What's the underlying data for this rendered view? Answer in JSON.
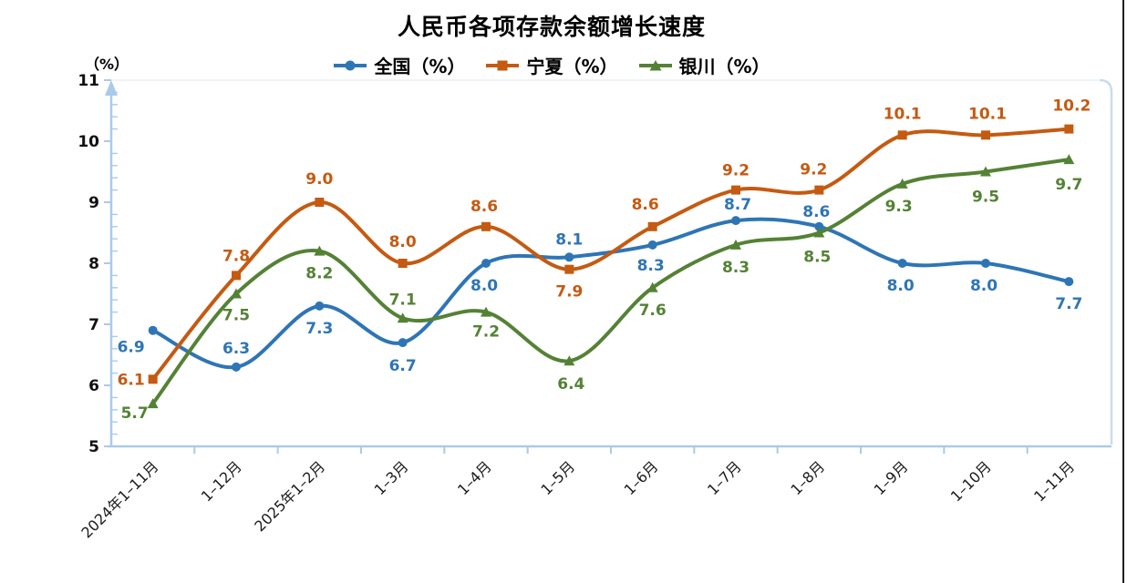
{
  "chart_data": {
    "type": "line",
    "title": "人民币各项存款余额增长速度",
    "unit_label": "（%）",
    "categories": [
      "2024年1–11月",
      "1–12月",
      "2025年1–2月",
      "1–3月",
      "1–4月",
      "1–5月",
      "1–6月",
      "1–7月",
      "1–8月",
      "1–9月",
      "1–10月",
      "1–11月"
    ],
    "series": [
      {
        "name": "全国（%）",
        "marker": "circle",
        "color": "#2E75B6",
        "values": [
          6.9,
          6.3,
          7.3,
          6.7,
          8.0,
          8.1,
          8.3,
          8.7,
          8.6,
          8.0,
          8.0,
          7.7
        ],
        "label_offsets": [
          [
            -24,
            24
          ],
          [
            0,
            -15
          ],
          [
            0,
            30
          ],
          [
            0,
            31
          ],
          [
            -2,
            30
          ],
          [
            0,
            -14
          ],
          [
            -2,
            28
          ],
          [
            2,
            -12
          ],
          [
            -3,
            -11
          ],
          [
            -2,
            30
          ],
          [
            -2,
            30
          ],
          [
            0,
            30
          ]
        ]
      },
      {
        "name": "宁夏（%）",
        "marker": "square",
        "color": "#C55A11",
        "values": [
          6.1,
          7.8,
          9.0,
          8.0,
          8.6,
          7.9,
          8.6,
          9.2,
          9.2,
          10.1,
          10.1,
          10.2
        ],
        "label_offsets": [
          [
            -24,
            6
          ],
          [
            0,
            -16
          ],
          [
            0,
            -20
          ],
          [
            0,
            -18
          ],
          [
            -2,
            -17
          ],
          [
            0,
            30
          ],
          [
            -8,
            -19
          ],
          [
            0,
            -16
          ],
          [
            -6,
            -17
          ],
          [
            0,
            -18
          ],
          [
            2,
            -18
          ],
          [
            3,
            -20
          ]
        ]
      },
      {
        "name": "银川（%）",
        "marker": "triangle",
        "color": "#548235",
        "values": [
          5.7,
          7.5,
          8.2,
          7.1,
          7.2,
          6.4,
          7.6,
          8.3,
          8.5,
          9.3,
          9.5,
          9.7
        ],
        "label_offsets": [
          [
            -20,
            16
          ],
          [
            0,
            29
          ],
          [
            0,
            30
          ],
          [
            0,
            -15
          ],
          [
            0,
            27
          ],
          [
            2,
            31
          ],
          [
            0,
            30
          ],
          [
            0,
            30
          ],
          [
            -2,
            32
          ],
          [
            -4,
            30
          ],
          [
            0,
            33
          ],
          [
            0,
            33
          ]
        ]
      }
    ],
    "y_axis": {
      "min": 5,
      "max": 11,
      "ticks": [
        5,
        6,
        7,
        8,
        9,
        10,
        11
      ],
      "minor_step": 0.2
    },
    "x_axis": {
      "label_rotation_deg": -45
    },
    "smooth": true,
    "grid": false,
    "legend_position": "top",
    "colors": {
      "axis": "#A9CBE9",
      "plot_border_right": "#C8DCEF",
      "plot_border_top": "#E7F0F8",
      "tick_label": "#111111",
      "x_label": "#1A1A1A"
    }
  }
}
